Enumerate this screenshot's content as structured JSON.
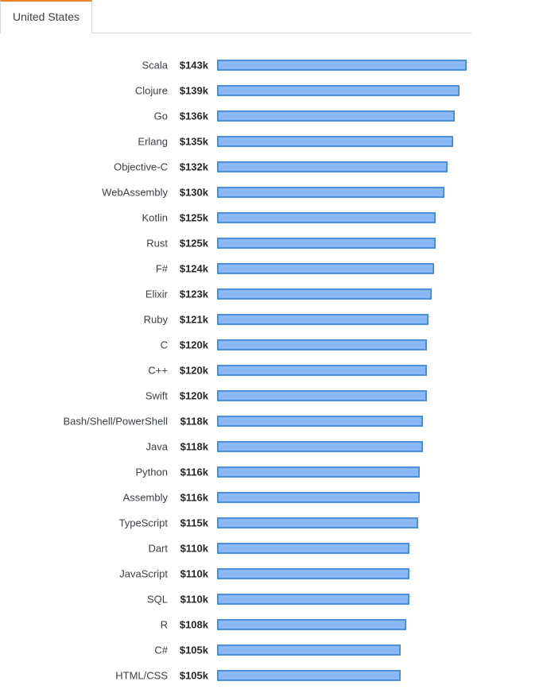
{
  "tabs": [
    {
      "label": "United States",
      "active": true
    }
  ],
  "colors": {
    "bar_fill": "#8ab8f7",
    "bar_stroke": "#4a90dd",
    "tab_accent": "#f48024"
  },
  "chart_data": {
    "type": "bar",
    "orientation": "horizontal",
    "title": "",
    "xlabel": "",
    "ylabel": "",
    "value_prefix": "$",
    "value_suffix": "k",
    "xlim": [
      0,
      150
    ],
    "categories": [
      "Scala",
      "Clojure",
      "Go",
      "Erlang",
      "Objective-C",
      "WebAssembly",
      "Kotlin",
      "Rust",
      "F#",
      "Elixir",
      "Ruby",
      "C",
      "C++",
      "Swift",
      "Bash/Shell/PowerShell",
      "Java",
      "Python",
      "Assembly",
      "TypeScript",
      "Dart",
      "JavaScript",
      "SQL",
      "R",
      "C#",
      "HTML/CSS"
    ],
    "values": [
      143,
      139,
      136,
      135,
      132,
      130,
      125,
      125,
      124,
      123,
      121,
      120,
      120,
      120,
      118,
      118,
      116,
      116,
      115,
      110,
      110,
      110,
      108,
      105,
      105
    ],
    "value_labels": [
      "$143k",
      "$139k",
      "$136k",
      "$135k",
      "$132k",
      "$130k",
      "$125k",
      "$125k",
      "$124k",
      "$123k",
      "$121k",
      "$120k",
      "$120k",
      "$120k",
      "$118k",
      "$118k",
      "$116k",
      "$116k",
      "$115k",
      "$110k",
      "$110k",
      "$110k",
      "$108k",
      "$105k",
      "$105k"
    ]
  }
}
